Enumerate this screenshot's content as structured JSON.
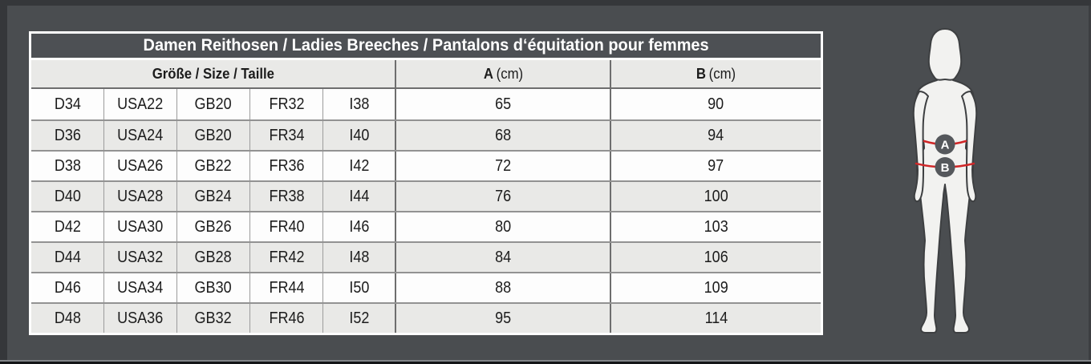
{
  "colors": {
    "page_bg": "#4a4d50",
    "page_edge_dark": "#35373a",
    "table_border": "#ffffff",
    "title_bar_bg": "#4d5054",
    "title_text": "#ffffff",
    "header_bg": "#e9e9e7",
    "row_white": "#fdfdfd",
    "row_stripe": "#e9e9e7",
    "grid_line": "#9c9c9c",
    "strong_grid_line": "#6e6e6e",
    "cell_text": "#1c1c1c",
    "red_measure_line": "#d02728",
    "marker_circle_bg": "#55585c",
    "marker_letter": "#ffffff",
    "silhouette_fill": "#f2f2f0",
    "silhouette_outline": "#3d3f41"
  },
  "size_chart": {
    "title": "Damen Reithosen / Ladies Breeches / Pantalons d‘équitation pour femmes",
    "header": {
      "size_label": "Größe / Size / Taille",
      "col_a_label": "A",
      "col_a_unit": "(cm)",
      "col_b_label": "B",
      "col_b_unit": "(cm)"
    },
    "rows": [
      [
        "D34",
        "USA22",
        "GB20",
        "FR32",
        "I38",
        "65",
        "90"
      ],
      [
        "D36",
        "USA24",
        "GB20",
        "FR34",
        "I40",
        "68",
        "94"
      ],
      [
        "D38",
        "USA26",
        "GB22",
        "FR36",
        "I42",
        "72",
        "97"
      ],
      [
        "D40",
        "USA28",
        "GB24",
        "FR38",
        "I44",
        "76",
        "100"
      ],
      [
        "D42",
        "USA30",
        "GB26",
        "FR40",
        "I46",
        "80",
        "103"
      ],
      [
        "D44",
        "USA32",
        "GB28",
        "FR42",
        "I48",
        "84",
        "106"
      ],
      [
        "D46",
        "USA34",
        "GB30",
        "FR44",
        "I50",
        "88",
        "109"
      ],
      [
        "D48",
        "USA36",
        "GB32",
        "FR46",
        "I52",
        "95",
        "114"
      ]
    ]
  },
  "figure": {
    "marker_a": "A",
    "marker_b": "B"
  },
  "chart_data": {
    "type": "table",
    "title": "Damen Reithosen / Ladies Breeches / Pantalons d‘équitation pour femmes",
    "column_groups": [
      {
        "label": "Größe / Size / Taille",
        "span": 5
      },
      {
        "label": "A (cm)",
        "span": 1
      },
      {
        "label": "B (cm)",
        "span": 1
      }
    ],
    "rows": [
      {
        "sizes": [
          "D34",
          "USA22",
          "GB20",
          "FR32",
          "I38"
        ],
        "A_cm": 65,
        "B_cm": 90
      },
      {
        "sizes": [
          "D36",
          "USA24",
          "GB20",
          "FR34",
          "I40"
        ],
        "A_cm": 68,
        "B_cm": 94
      },
      {
        "sizes": [
          "D38",
          "USA26",
          "GB22",
          "FR36",
          "I42"
        ],
        "A_cm": 72,
        "B_cm": 97
      },
      {
        "sizes": [
          "D40",
          "USA28",
          "GB24",
          "FR38",
          "I44"
        ],
        "A_cm": 76,
        "B_cm": 100
      },
      {
        "sizes": [
          "D42",
          "USA30",
          "GB26",
          "FR40",
          "I46"
        ],
        "A_cm": 80,
        "B_cm": 103
      },
      {
        "sizes": [
          "D44",
          "USA32",
          "GB28",
          "FR42",
          "I48"
        ],
        "A_cm": 84,
        "B_cm": 106
      },
      {
        "sizes": [
          "D46",
          "USA34",
          "GB30",
          "FR44",
          "I50"
        ],
        "A_cm": 88,
        "B_cm": 109
      },
      {
        "sizes": [
          "D48",
          "USA36",
          "GB32",
          "FR46",
          "I52"
        ],
        "A_cm": 95,
        "B_cm": 114
      }
    ],
    "figure_markers": [
      "A",
      "B"
    ],
    "layout_hints": {
      "stripe_rows": true,
      "merged_size_header": true
    }
  }
}
